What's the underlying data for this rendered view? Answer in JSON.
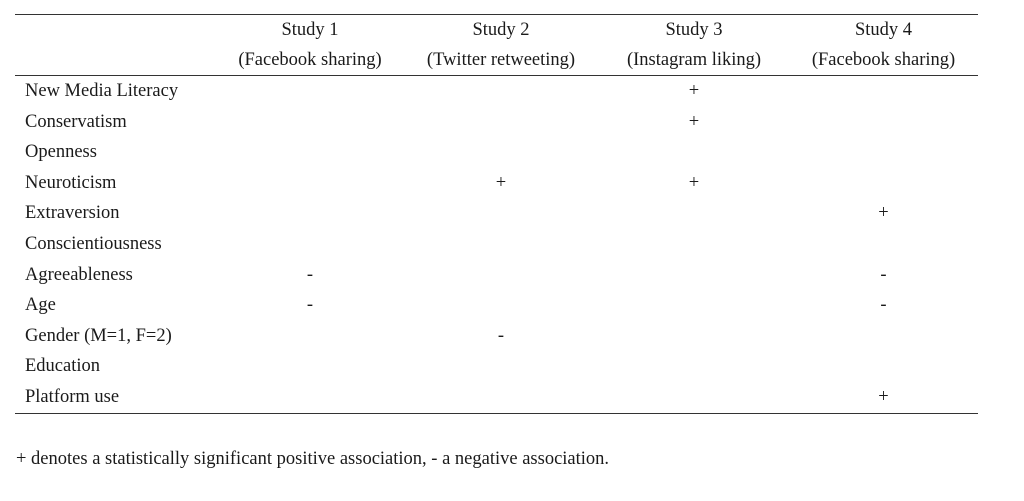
{
  "table": {
    "columns": [
      {
        "title": "Study 1",
        "subtitle": "(Facebook sharing)"
      },
      {
        "title": "Study 2",
        "subtitle": "(Twitter retweeting)"
      },
      {
        "title": "Study 3",
        "subtitle": "(Instagram liking)"
      },
      {
        "title": "Study 4",
        "subtitle": "(Facebook sharing)"
      }
    ],
    "rows": [
      {
        "label": "New Media Literacy",
        "cells": [
          "",
          "",
          "+",
          ""
        ]
      },
      {
        "label": "Conservatism",
        "cells": [
          "",
          "",
          "+",
          ""
        ]
      },
      {
        "label": "Openness",
        "cells": [
          "",
          "",
          "",
          ""
        ]
      },
      {
        "label": "Neuroticism",
        "cells": [
          "",
          "+",
          "+",
          ""
        ]
      },
      {
        "label": "Extraversion",
        "cells": [
          "",
          "",
          "",
          "+"
        ]
      },
      {
        "label": "Conscientiousness",
        "cells": [
          "",
          "",
          "",
          ""
        ]
      },
      {
        "label": "Agreeableness",
        "cells": [
          "-",
          "",
          "",
          "-"
        ]
      },
      {
        "label": "Age",
        "cells": [
          "-",
          "",
          "",
          "-"
        ]
      },
      {
        "label": "Gender (M=1, F=2)",
        "cells": [
          "",
          "-",
          "",
          ""
        ]
      },
      {
        "label": "Education",
        "cells": [
          "",
          "",
          "",
          ""
        ]
      },
      {
        "label": "Platform use",
        "cells": [
          "",
          "",
          "",
          "+"
        ]
      }
    ]
  },
  "footnote": "+ denotes a statistically significant positive association, - a negative association."
}
